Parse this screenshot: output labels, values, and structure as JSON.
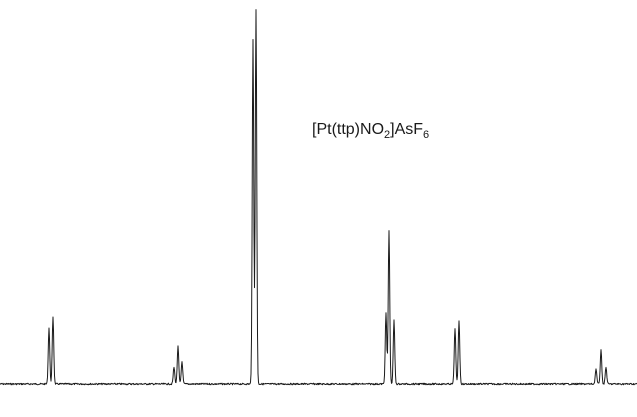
{
  "label": {
    "parts": [
      {
        "text": "[Pt(ttp)NO",
        "kind": "main"
      },
      {
        "text": "2",
        "kind": "sub"
      },
      {
        "text": "]AsF",
        "kind": "main"
      },
      {
        "text": "6",
        "kind": "sub"
      }
    ]
  },
  "chart_data": {
    "type": "line",
    "title": "",
    "xlabel": "",
    "ylabel": "",
    "trace_color": "#1a1a1a",
    "grid": false,
    "legend": "none",
    "x_range": [
      0,
      637
    ],
    "y_range": [
      0,
      1
    ],
    "peak_groups": [
      {
        "name": "group-1",
        "peaks": [
          {
            "x": 49,
            "h": 0.15
          },
          {
            "x": 53,
            "h": 0.18
          }
        ]
      },
      {
        "name": "group-2",
        "peaks": [
          {
            "x": 174,
            "h": 0.045
          },
          {
            "x": 178,
            "h": 0.1
          },
          {
            "x": 182,
            "h": 0.06
          }
        ]
      },
      {
        "name": "group-3",
        "peaks": [
          {
            "x": 253,
            "h": 0.92
          },
          {
            "x": 256,
            "h": 1.0
          }
        ]
      },
      {
        "name": "group-4",
        "peaks": [
          {
            "x": 386,
            "h": 0.19
          },
          {
            "x": 389,
            "h": 0.41
          },
          {
            "x": 394,
            "h": 0.17
          }
        ]
      },
      {
        "name": "group-5",
        "peaks": [
          {
            "x": 455,
            "h": 0.15
          },
          {
            "x": 459,
            "h": 0.17
          }
        ]
      },
      {
        "name": "group-6",
        "peaks": [
          {
            "x": 596,
            "h": 0.04
          },
          {
            "x": 601,
            "h": 0.09
          },
          {
            "x": 606,
            "h": 0.045
          }
        ]
      }
    ]
  }
}
